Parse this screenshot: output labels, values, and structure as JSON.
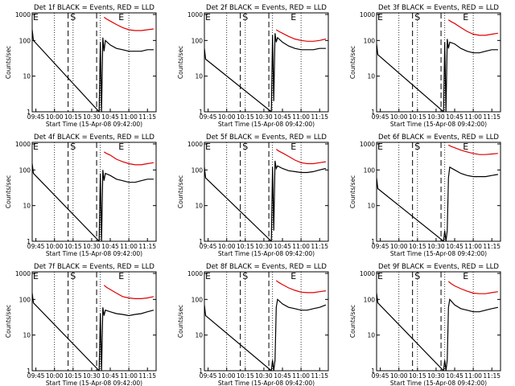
{
  "chart_data": [
    {
      "type": "line",
      "title": "Det 1f BLACK = Events, RED = LLD",
      "xlabel": "Start Time (15-Apr-08 09:42:00)",
      "ylabel": "Counts/sec",
      "yscale": "log",
      "ylim": [
        1,
        1000
      ],
      "xlim": [
        "09:42",
        "11:22"
      ],
      "x_ticks": [
        "09:45",
        "10:00",
        "10:15",
        "10:30",
        "10:45",
        "11:00",
        "11:15"
      ],
      "y_ticks": [
        "1",
        "10",
        "100",
        "1000"
      ],
      "markers": [
        "E",
        "S",
        "E"
      ],
      "series": [
        {
          "name": "Events",
          "color": "#000000",
          "x": [
            "09:42",
            "09:43",
            "10:36",
            "10:37",
            "10:38",
            "10:39",
            "10:40",
            "10:41",
            "10:45",
            "10:50",
            "10:55",
            "11:00",
            "11:05",
            "11:10",
            "11:15",
            "11:20"
          ],
          "values": [
            200,
            100,
            1,
            90,
            1,
            120,
            50,
            100,
            75,
            60,
            55,
            50,
            50,
            50,
            55,
            55
          ]
        },
        {
          "name": "LLD",
          "color": "#e00000",
          "x": [
            "10:40",
            "10:42",
            "10:45",
            "10:50",
            "10:55",
            "11:00",
            "11:05",
            "11:10",
            "11:15",
            "11:20"
          ],
          "values": [
            450,
            400,
            350,
            280,
            230,
            200,
            190,
            190,
            200,
            210
          ]
        }
      ]
    },
    {
      "type": "line",
      "title": "Det 2f BLACK = Events, RED = LLD",
      "xlabel": "Start Time (15-Apr-08 09:42:00)",
      "ylabel": "Counts/sec",
      "yscale": "log",
      "ylim": [
        1,
        1000
      ],
      "xlim": [
        "09:42",
        "11:22"
      ],
      "x_ticks": [
        "09:45",
        "10:00",
        "10:15",
        "10:30",
        "10:45",
        "11:00",
        "11:15"
      ],
      "y_ticks": [
        "1",
        "10",
        "100",
        "1000"
      ],
      "markers": [
        "E",
        "S",
        "E"
      ],
      "series": [
        {
          "name": "Events",
          "color": "#000000",
          "x": [
            "09:42",
            "09:43",
            "10:36",
            "10:37",
            "10:38",
            "10:39",
            "10:40",
            "10:41",
            "10:45",
            "10:50",
            "10:55",
            "11:00",
            "11:05",
            "11:10",
            "11:15",
            "11:20"
          ],
          "values": [
            60,
            30,
            1,
            140,
            2,
            160,
            90,
            120,
            90,
            70,
            60,
            55,
            55,
            55,
            60,
            60
          ]
        },
        {
          "name": "LLD",
          "color": "#e00000",
          "x": [
            "10:40",
            "10:42",
            "10:45",
            "10:50",
            "10:55",
            "11:00",
            "11:05",
            "11:10",
            "11:15",
            "11:20"
          ],
          "values": [
            200,
            180,
            160,
            130,
            110,
            100,
            95,
            95,
            100,
            110
          ]
        }
      ]
    },
    {
      "type": "line",
      "title": "Det 3f BLACK = Events, RED = LLD",
      "xlabel": "Start Time (15-Apr-08 09:42:00)",
      "ylabel": "Counts/sec",
      "yscale": "log",
      "ylim": [
        1,
        1000
      ],
      "xlim": [
        "09:42",
        "11:22"
      ],
      "x_ticks": [
        "09:45",
        "10:00",
        "10:15",
        "10:30",
        "10:45",
        "11:00",
        "11:15"
      ],
      "y_ticks": [
        "1",
        "10",
        "100",
        "1000"
      ],
      "markers": [
        "E",
        "S",
        "E"
      ],
      "series": [
        {
          "name": "Events",
          "color": "#000000",
          "x": [
            "09:42",
            "09:43",
            "10:36",
            "10:37",
            "10:38",
            "10:39",
            "10:40",
            "10:41",
            "10:45",
            "10:50",
            "10:55",
            "11:00",
            "11:05",
            "11:10",
            "11:15",
            "11:20"
          ],
          "values": [
            80,
            40,
            1,
            90,
            1,
            110,
            60,
            90,
            80,
            60,
            50,
            45,
            45,
            50,
            55,
            55
          ]
        },
        {
          "name": "LLD",
          "color": "#e00000",
          "x": [
            "10:40",
            "10:42",
            "10:45",
            "10:50",
            "10:55",
            "11:00",
            "11:05",
            "11:10",
            "11:15",
            "11:20"
          ],
          "values": [
            380,
            340,
            300,
            230,
            180,
            150,
            140,
            140,
            150,
            160
          ]
        }
      ]
    },
    {
      "type": "line",
      "title": "Det 4f BLACK = Events, RED = LLD",
      "xlabel": "Start Time (15-Apr-08 09:42:00)",
      "ylabel": "Counts/sec",
      "yscale": "log",
      "ylim": [
        1,
        1000
      ],
      "xlim": [
        "09:42",
        "11:22"
      ],
      "x_ticks": [
        "09:45",
        "10:00",
        "10:15",
        "10:30",
        "10:45",
        "11:00",
        "11:15"
      ],
      "y_ticks": [
        "1",
        "10",
        "100",
        "1000"
      ],
      "markers": [
        "E",
        "S",
        "E"
      ],
      "series": [
        {
          "name": "Events",
          "color": "#000000",
          "x": [
            "09:42",
            "09:43",
            "10:36",
            "10:37",
            "10:38",
            "10:39",
            "10:40",
            "10:41",
            "10:45",
            "10:50",
            "10:55",
            "11:00",
            "11:05",
            "11:10",
            "11:15",
            "11:20"
          ],
          "values": [
            150,
            80,
            1,
            80,
            1,
            100,
            50,
            80,
            70,
            55,
            50,
            45,
            45,
            50,
            55,
            55
          ]
        },
        {
          "name": "LLD",
          "color": "#e00000",
          "x": [
            "10:40",
            "10:42",
            "10:45",
            "10:50",
            "10:55",
            "11:00",
            "11:05",
            "11:10",
            "11:15",
            "11:20"
          ],
          "values": [
            320,
            290,
            260,
            200,
            170,
            150,
            140,
            140,
            150,
            160
          ]
        }
      ]
    },
    {
      "type": "line",
      "title": "Det 5f BLACK = Events, RED = LLD",
      "xlabel": "Start Time (15-Apr-08 09:42:00)",
      "ylabel": "Counts/sec",
      "yscale": "log",
      "ylim": [
        1,
        1000
      ],
      "xlim": [
        "09:42",
        "11:22"
      ],
      "x_ticks": [
        "09:45",
        "10:00",
        "10:15",
        "10:30",
        "10:45",
        "11:00",
        "11:15"
      ],
      "y_ticks": [
        "1",
        "10",
        "100",
        "1000"
      ],
      "markers": [
        "E",
        "S",
        "E"
      ],
      "series": [
        {
          "name": "Events",
          "color": "#000000",
          "x": [
            "09:42",
            "09:43",
            "10:36",
            "10:37",
            "10:38",
            "10:39",
            "10:40",
            "10:41",
            "10:45",
            "10:50",
            "10:55",
            "11:00",
            "11:05",
            "11:10",
            "11:15",
            "11:20"
          ],
          "values": [
            120,
            60,
            1,
            120,
            2,
            180,
            110,
            130,
            110,
            95,
            90,
            85,
            85,
            90,
            100,
            110
          ]
        },
        {
          "name": "LLD",
          "color": "#e00000",
          "x": [
            "10:40",
            "10:42",
            "10:45",
            "10:50",
            "10:55",
            "11:00",
            "11:05",
            "11:10",
            "11:15",
            "11:20"
          ],
          "values": [
            380,
            340,
            300,
            240,
            190,
            160,
            150,
            150,
            160,
            170
          ]
        }
      ]
    },
    {
      "type": "line",
      "title": "Det 6f BLACK = Events, RED = LLD",
      "xlabel": "Start Time (15-Apr-08 09:42:00)",
      "ylabel": "Counts/sec",
      "yscale": "log",
      "ylim": [
        1,
        1000
      ],
      "xlim": [
        "09:42",
        "11:22"
      ],
      "x_ticks": [
        "09:45",
        "10:00",
        "10:15",
        "10:30",
        "10:45",
        "11:00",
        "11:15"
      ],
      "y_ticks": [
        "1",
        "10",
        "100",
        "1000"
      ],
      "markers": [
        "E",
        "S",
        "E"
      ],
      "series": [
        {
          "name": "Events",
          "color": "#000000",
          "x": [
            "09:42",
            "09:43",
            "10:36",
            "10:37",
            "10:38",
            "10:39",
            "10:40",
            "10:41",
            "10:45",
            "10:50",
            "10:55",
            "11:00",
            "11:05",
            "11:10",
            "11:15",
            "11:20"
          ],
          "values": [
            60,
            30,
            1,
            2,
            1,
            2,
            60,
            120,
            100,
            80,
            70,
            65,
            65,
            65,
            70,
            75
          ]
        },
        {
          "name": "LLD",
          "color": "#e00000",
          "x": [
            "10:40",
            "10:42",
            "10:45",
            "10:50",
            "10:55",
            "11:00",
            "11:05",
            "11:10",
            "11:15",
            "11:20"
          ],
          "values": [
            500,
            460,
            420,
            360,
            320,
            290,
            270,
            270,
            280,
            290
          ]
        }
      ]
    },
    {
      "type": "line",
      "title": "Det 7f BLACK = Events, RED = LLD",
      "xlabel": "Start Time (15-Apr-08 09:42:00)",
      "ylabel": "Counts/sec",
      "yscale": "log",
      "ylim": [
        1,
        1000
      ],
      "xlim": [
        "09:42",
        "11:22"
      ],
      "x_ticks": [
        "09:45",
        "10:00",
        "10:15",
        "10:30",
        "10:45",
        "11:00",
        "11:15"
      ],
      "y_ticks": [
        "1",
        "10",
        "100",
        "1000"
      ],
      "markers": [
        "E",
        "S",
        "E"
      ],
      "series": [
        {
          "name": "Events",
          "color": "#000000",
          "x": [
            "09:42",
            "09:43",
            "10:36",
            "10:37",
            "10:38",
            "10:39",
            "10:40",
            "10:41",
            "10:45",
            "10:50",
            "10:55",
            "11:00",
            "11:05",
            "11:10",
            "11:15",
            "11:20"
          ],
          "values": [
            150,
            80,
            1,
            40,
            1,
            60,
            35,
            50,
            45,
            40,
            38,
            35,
            38,
            40,
            45,
            50
          ]
        },
        {
          "name": "LLD",
          "color": "#e00000",
          "x": [
            "10:40",
            "10:42",
            "10:45",
            "10:50",
            "10:55",
            "11:00",
            "11:05",
            "11:10",
            "11:15",
            "11:20"
          ],
          "values": [
            250,
            220,
            190,
            150,
            120,
            110,
            105,
            105,
            110,
            120
          ]
        }
      ]
    },
    {
      "type": "line",
      "title": "Det 8f BLACK = Events, RED = LLD",
      "xlabel": "Start Time (15-Apr-08 09:42:00)",
      "ylabel": "Counts/sec",
      "yscale": "log",
      "ylim": [
        1,
        1000
      ],
      "xlim": [
        "09:42",
        "11:22"
      ],
      "x_ticks": [
        "09:45",
        "10:00",
        "10:15",
        "10:30",
        "10:45",
        "11:00",
        "11:15"
      ],
      "y_ticks": [
        "1",
        "10",
        "100",
        "1000"
      ],
      "markers": [
        "E",
        "S",
        "E"
      ],
      "series": [
        {
          "name": "Events",
          "color": "#000000",
          "x": [
            "09:42",
            "09:43",
            "10:36",
            "10:37",
            "10:38",
            "10:39",
            "10:40",
            "10:41",
            "10:45",
            "10:50",
            "10:55",
            "11:00",
            "11:05",
            "11:10",
            "11:15",
            "11:20"
          ],
          "values": [
            70,
            35,
            1,
            2,
            1,
            2,
            60,
            100,
            75,
            60,
            55,
            50,
            50,
            55,
            60,
            70
          ]
        },
        {
          "name": "LLD",
          "color": "#e00000",
          "x": [
            "10:40",
            "10:42",
            "10:45",
            "10:50",
            "10:55",
            "11:00",
            "11:05",
            "11:10",
            "11:15",
            "11:20"
          ],
          "values": [
            340,
            300,
            260,
            210,
            180,
            160,
            155,
            155,
            165,
            175
          ]
        }
      ]
    },
    {
      "type": "line",
      "title": "Det 9f BLACK = Events, RED = LLD",
      "xlabel": "Start Time (15-Apr-08 09:42:00)",
      "ylabel": "Counts/sec",
      "yscale": "log",
      "ylim": [
        1,
        1000
      ],
      "xlim": [
        "09:42",
        "11:22"
      ],
      "x_ticks": [
        "09:45",
        "10:00",
        "10:15",
        "10:30",
        "10:45",
        "11:00",
        "11:15"
      ],
      "y_ticks": [
        "1",
        "10",
        "100",
        "1000"
      ],
      "markers": [
        "E",
        "S",
        "E"
      ],
      "series": [
        {
          "name": "Events",
          "color": "#000000",
          "x": [
            "09:42",
            "09:43",
            "10:36",
            "10:37",
            "10:38",
            "10:39",
            "10:40",
            "10:41",
            "10:45",
            "10:50",
            "10:55",
            "11:00",
            "11:05",
            "11:10",
            "11:15",
            "11:20"
          ],
          "values": [
            150,
            80,
            1,
            2,
            1,
            2,
            60,
            100,
            70,
            55,
            50,
            45,
            45,
            50,
            55,
            60
          ]
        },
        {
          "name": "LLD",
          "color": "#e00000",
          "x": [
            "10:40",
            "10:42",
            "10:45",
            "10:50",
            "10:55",
            "11:00",
            "11:05",
            "11:10",
            "11:15",
            "11:20"
          ],
          "values": [
            320,
            280,
            240,
            200,
            170,
            150,
            145,
            145,
            155,
            165
          ]
        }
      ]
    }
  ]
}
